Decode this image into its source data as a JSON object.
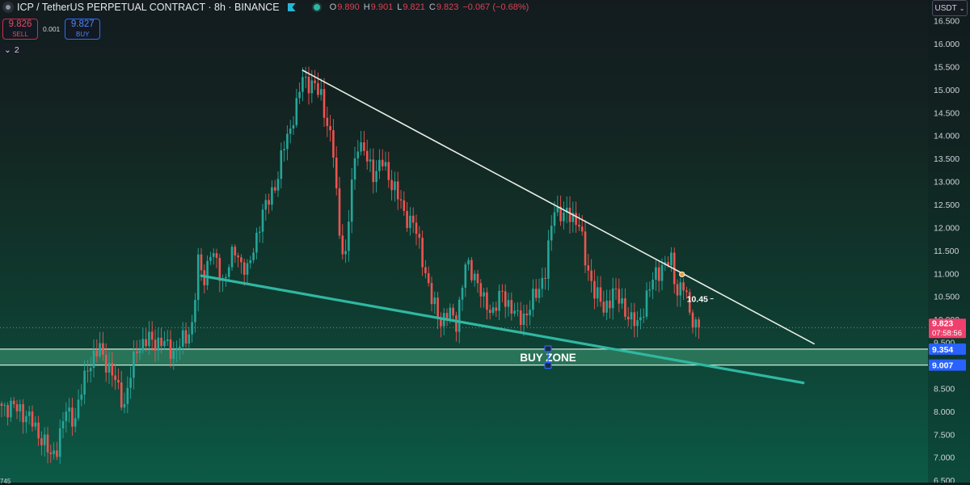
{
  "header": {
    "title": "ICP / TetherUS PERPETUAL CONTRACT · 8h · BINANCE",
    "ohlc": [
      {
        "k": "O",
        "v": "9.890"
      },
      {
        "k": "H",
        "v": "9.901"
      },
      {
        "k": "L",
        "v": "9.821"
      },
      {
        "k": "C",
        "v": "9.823"
      },
      {
        "k": "",
        "v": "−0.067 (−0.68%)"
      }
    ]
  },
  "trade": {
    "sell_price": "9.826",
    "sell_label": "SELL",
    "spread": "0.001",
    "buy_price": "9.827",
    "buy_label": "BUY"
  },
  "indicators_count": "2",
  "currency": "USDT",
  "colors": {
    "up": "#26a69a",
    "down": "#ef5350",
    "trendline": "#e8efe6",
    "support": "#2fb8a2",
    "zone": "#2e7d5e",
    "price_tag": "#ef3f6c",
    "level_tag": "#2962ff"
  },
  "chart_data": {
    "type": "candlestick",
    "symbol": "ICP / TetherUS PERPETUAL CONTRACT",
    "interval": "8h",
    "exchange": "BINANCE",
    "ylim": [
      6.45,
      16.95
    ],
    "y_ticks": [
      "16.500",
      "16.000",
      "15.500",
      "15.000",
      "14.500",
      "14.000",
      "13.500",
      "13.000",
      "12.500",
      "12.000",
      "11.500",
      "11.000",
      "10.500",
      "10.000",
      "9.500",
      "9.000",
      "8.500",
      "8.000",
      "7.500",
      "7.000",
      "6.500"
    ],
    "candles_count": 228,
    "close_path": [
      [
        0,
        8.12
      ],
      [
        6,
        8.05
      ],
      [
        10,
        7.75
      ],
      [
        14,
        7.3
      ],
      [
        16,
        7.0
      ],
      [
        18,
        7.25
      ],
      [
        21,
        8.0
      ],
      [
        24,
        7.85
      ],
      [
        28,
        9.0
      ],
      [
        32,
        9.35
      ],
      [
        36,
        8.8
      ],
      [
        40,
        8.15
      ],
      [
        44,
        9.4
      ],
      [
        48,
        9.55
      ],
      [
        52,
        9.5
      ],
      [
        56,
        9.3
      ],
      [
        60,
        9.6
      ],
      [
        62,
        9.9
      ],
      [
        64,
        11.2
      ],
      [
        66,
        10.9
      ],
      [
        68,
        11.5
      ],
      [
        72,
        10.85
      ],
      [
        76,
        11.5
      ],
      [
        80,
        11.0
      ],
      [
        84,
        12.1
      ],
      [
        88,
        12.8
      ],
      [
        90,
        13.1
      ],
      [
        92,
        13.8
      ],
      [
        96,
        14.6
      ],
      [
        98,
        15.3
      ],
      [
        100,
        15.15
      ],
      [
        104,
        14.9
      ],
      [
        108,
        13.6
      ],
      [
        110,
        11.9
      ],
      [
        112,
        11.3
      ],
      [
        114,
        13.0
      ],
      [
        116,
        13.9
      ],
      [
        118,
        13.6
      ],
      [
        121,
        13.2
      ],
      [
        124,
        13.4
      ],
      [
        128,
        12.85
      ],
      [
        131,
        12.3
      ],
      [
        134,
        12.1
      ],
      [
        137,
        11.35
      ],
      [
        140,
        10.4
      ],
      [
        143,
        10.0
      ],
      [
        146,
        10.1
      ],
      [
        148,
        9.95
      ],
      [
        151,
        11.15
      ],
      [
        154,
        11.0
      ],
      [
        157,
        10.35
      ],
      [
        160,
        10.2
      ],
      [
        163,
        10.55
      ],
      [
        166,
        10.25
      ],
      [
        168,
        10.0
      ],
      [
        171,
        10.15
      ],
      [
        174,
        10.55
      ],
      [
        177,
        11.05
      ],
      [
        180,
        12.45
      ],
      [
        183,
        12.25
      ],
      [
        186,
        12.25
      ],
      [
        188,
        12.1
      ],
      [
        190,
        11.25
      ],
      [
        193,
        10.65
      ],
      [
        196,
        10.2
      ],
      [
        199,
        10.6
      ],
      [
        202,
        10.35
      ],
      [
        205,
        9.95
      ],
      [
        207,
        9.9
      ],
      [
        210,
        10.45
      ],
      [
        213,
        11.05
      ],
      [
        216,
        11.15
      ],
      [
        218,
        11.3
      ],
      [
        220,
        10.6
      ],
      [
        222,
        10.7
      ],
      [
        224,
        10.2
      ],
      [
        226,
        9.85
      ],
      [
        227,
        9.823
      ]
    ],
    "drawings": [
      {
        "type": "trendline",
        "name": "descending-resistance",
        "from": [
          98,
          15.42
        ],
        "to": [
          264.5,
          9.47
        ]
      },
      {
        "type": "trendline",
        "name": "support",
        "from": [
          65,
          10.95
        ],
        "to": [
          261,
          8.62
        ]
      },
      {
        "type": "rectangle",
        "name": "buy-zone",
        "y_top": 9.354,
        "y_bottom": 9.007,
        "label": "BUY ZONE"
      },
      {
        "type": "label",
        "text": "10.45",
        "at": [
          222,
          10.45
        ]
      }
    ],
    "last_price": "9.823",
    "countdown": "07:58:56",
    "levels": [
      "9.354",
      "9.007"
    ]
  },
  "corner_text": "745"
}
